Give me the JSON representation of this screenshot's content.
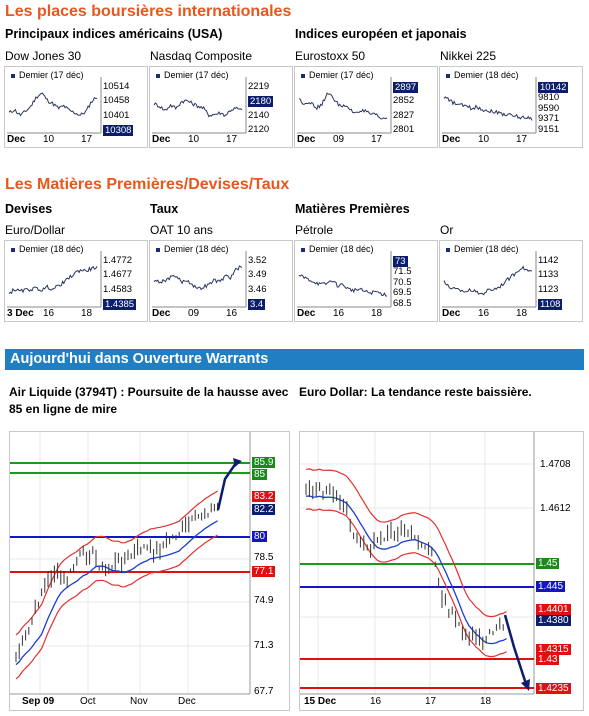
{
  "section1": {
    "title": "Les places boursières internationales",
    "us_heading": "Principaux indices américains (USA)",
    "eu_heading": "Indices européen et japonais"
  },
  "section2": {
    "title": "Les Matières Premières/Devises/Taux",
    "devises": "Devises",
    "taux": "Taux",
    "matieres": "Matières Premières"
  },
  "minis": [
    {
      "name": "Dow Jones 30",
      "legend": "Demier (17 déc)",
      "ticks": [
        "10514",
        "10458",
        "10401",
        "10308"
      ],
      "current": "10308",
      "xlabels": [
        "Dec",
        "10",
        "17"
      ]
    },
    {
      "name": "Nasdaq Composite",
      "legend": "Demier (17 déc)",
      "ticks": [
        "2219",
        "2180",
        "2140",
        "2120"
      ],
      "current": "2180",
      "xlabels": [
        "Dec",
        "10",
        "17"
      ]
    },
    {
      "name": "Eurostoxx 50",
      "legend": "Demier (17 déc)",
      "ticks": [
        "2897",
        "2852",
        "2827",
        "2801"
      ],
      "current": "2897",
      "xlabels": [
        "Dec",
        "09",
        "17"
      ]
    },
    {
      "name": "Nikkei 225",
      "legend": "Demier (18 déc)",
      "ticks": [
        "10142",
        "9810",
        "9590",
        "9371",
        "9151"
      ],
      "current": "10142",
      "xlabels": [
        "Dec",
        "10",
        "17"
      ]
    },
    {
      "name": "Euro/Dollar",
      "legend": "Demier (18 déc)",
      "ticks": [
        "1.4772",
        "1.4677",
        "1.4583",
        "1.4385"
      ],
      "current": "1.4385",
      "xlabels": [
        "3 Dec",
        "16",
        "18"
      ]
    },
    {
      "name": "OAT 10 ans",
      "legend": "Demier (18 déc)",
      "ticks": [
        "3.52",
        "3.49",
        "3.46",
        "3.4"
      ],
      "current": "3.4",
      "xlabels": [
        "Dec",
        "09",
        "16"
      ]
    },
    {
      "name": "Pétrole",
      "legend": "Demier (18 déc)",
      "ticks": [
        "73",
        "71.5",
        "70.5",
        "69.5",
        "68.5"
      ],
      "current": "73",
      "xlabels": [
        "Dec",
        "16",
        "18"
      ]
    },
    {
      "name": "Or",
      "legend": "Demier (18 déc)",
      "ticks": [
        "1142",
        "1133",
        "1123",
        "1108"
      ],
      "current": "1108",
      "xlabels": [
        "Dec",
        "16",
        "18"
      ]
    }
  ],
  "warrants": {
    "bar_title": "Aujourd'hui dans Ouverture Warrants",
    "article1": "Air Liquide (3794T) : Poursuite de la hausse avec 85 en ligne de mire",
    "article2": "Euro Dollar: La tendance reste baissière.",
    "chart1": {
      "ticks": [
        "78.5",
        "74.9",
        "71.3",
        "67.7"
      ],
      "tags": {
        "green1": "85.9",
        "green2": "85",
        "red1": "83.2",
        "cur": "82.2",
        "blue": "80",
        "red2": "77.1"
      },
      "xlabels": [
        "Sep 09",
        "Oct",
        "Nov",
        "Dec"
      ]
    },
    "chart2": {
      "ticks": [
        "1.4708",
        "1.4612",
        "1.4508"
      ],
      "tags": {
        "green": "1.45",
        "blue": "1.445",
        "red1": "1.4401",
        "cur": "1.4380",
        "red2": "1.4315",
        "red3": "1.43",
        "red4": "1.4235"
      },
      "xlabels": [
        "15 Dec",
        "16",
        "17",
        "18"
      ]
    }
  },
  "colors": {
    "accent": "#e8571f",
    "bar": "#1f7fc2",
    "navy": "#0b1d6b"
  }
}
